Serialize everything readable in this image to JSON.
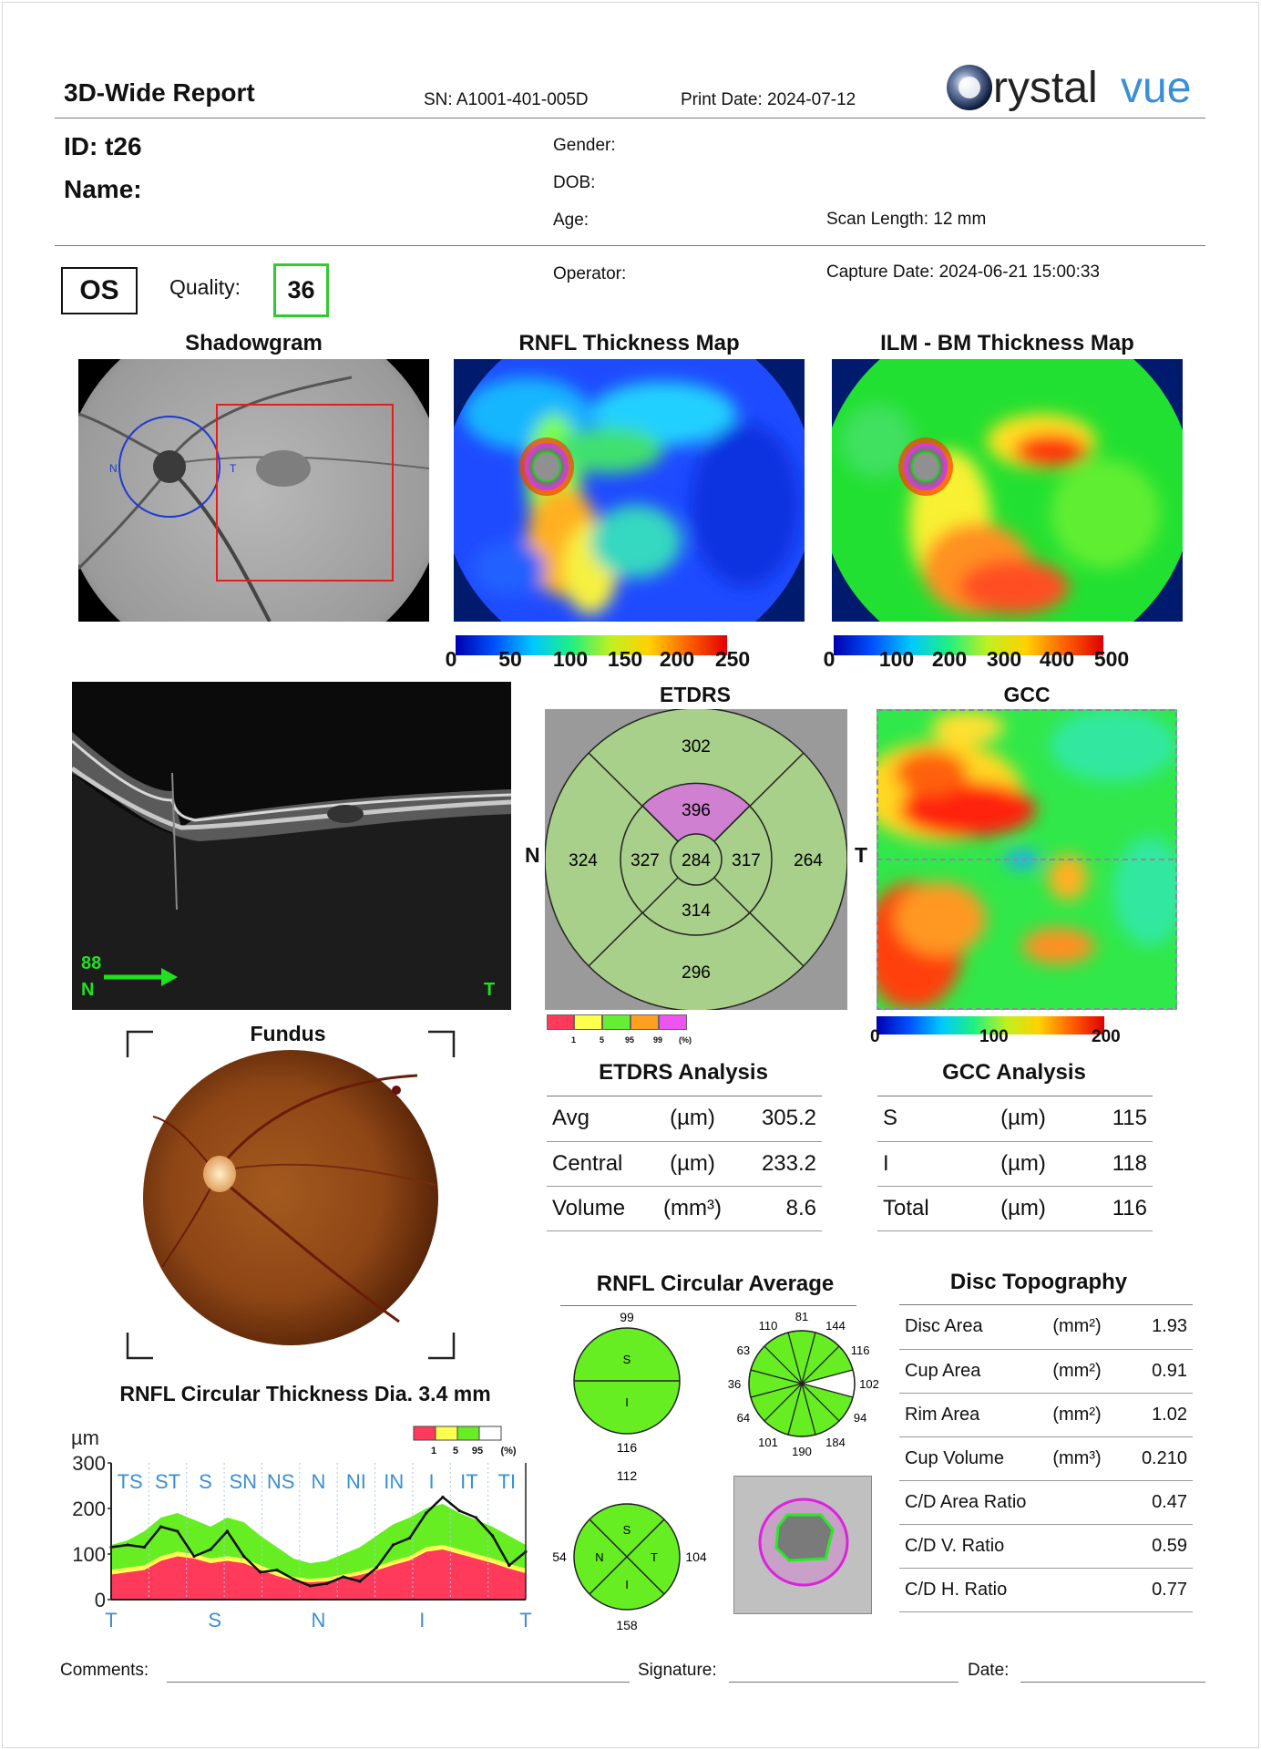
{
  "header": {
    "title": "3D-Wide Report",
    "sn": "SN: A1001-401-005D",
    "print_date": "Print Date: 2024-07-12",
    "logo_text": "Crystalvue"
  },
  "patient": {
    "id": "ID: t26",
    "name": "Name:",
    "gender": "Gender:",
    "dob": "DOB:",
    "age": "Age:",
    "scan_length": "Scan Length: 12 mm",
    "operator": "Operator:",
    "capture_date": "Capture Date:  2024-06-21 15:00:33",
    "eye": "OS",
    "quality_label": "Quality:",
    "quality_value": "36"
  },
  "colors": {
    "quality_green": "#2ecc2e",
    "accent_blue": "#3a8fd6",
    "red_box": "#e02020"
  },
  "shadowgram": {
    "title": "Shadowgram",
    "marker_n": "N",
    "marker_t": "T"
  },
  "rnfl_map": {
    "title": "RNFL Thickness Map",
    "scale": [
      "0",
      "50",
      "100",
      "150",
      "200",
      "250"
    ]
  },
  "ilm_map": {
    "title": "ILM - BM Thickness Map",
    "scale": [
      "0",
      "100",
      "200",
      "300",
      "400",
      "500"
    ]
  },
  "bscan": {
    "frame": "88",
    "left": "N",
    "right": "T"
  },
  "etdrs": {
    "title": "ETDRS",
    "left": "N",
    "right": "T",
    "values": {
      "outer_sup": "302",
      "inner_sup": "396",
      "outer_nasal": "324",
      "inner_nasal": "327",
      "center": "284",
      "inner_temp": "317",
      "outer_temp": "264",
      "inner_inf": "314",
      "outer_inf": "296"
    },
    "legend_labels": [
      "1",
      "5",
      "95",
      "99",
      "(%)"
    ]
  },
  "gcc": {
    "title": "GCC",
    "scale": [
      "0",
      "100",
      "200"
    ]
  },
  "fundus": {
    "title": "Fundus"
  },
  "etdrs_analysis": {
    "title": "ETDRS Analysis",
    "rows": [
      {
        "name": "Avg",
        "unit": "(µm)",
        "value": "305.2"
      },
      {
        "name": "Central",
        "unit": "(µm)",
        "value": "233.2"
      },
      {
        "name": "Volume",
        "unit": "(mm³)",
        "value": "8.6"
      }
    ]
  },
  "gcc_analysis": {
    "title": "GCC Analysis",
    "rows": [
      {
        "name": "S",
        "unit": "(µm)",
        "value": "115"
      },
      {
        "name": "I",
        "unit": "(µm)",
        "value": "118"
      },
      {
        "name": "Total",
        "unit": "(µm)",
        "value": "116"
      }
    ]
  },
  "rnfl_circular": {
    "title": "RNFL Circular Average",
    "hemi": {
      "top": "99",
      "bottom": "116",
      "s": "S",
      "i": "I"
    },
    "clock": [
      "81",
      "144",
      "116",
      "102",
      "94",
      "184",
      "190",
      "101",
      "64",
      "36",
      "63",
      "110"
    ],
    "quad": {
      "top": "112",
      "left": "54",
      "right": "104",
      "bottom": "158",
      "s": "S",
      "n": "N",
      "t": "T",
      "i": "I"
    }
  },
  "disc_topography": {
    "title": "Disc Topography",
    "rows": [
      {
        "name": "Disc Area",
        "unit": "(mm²)",
        "value": "1.93"
      },
      {
        "name": "Cup Area",
        "unit": "(mm²)",
        "value": "0.91"
      },
      {
        "name": "Rim Area",
        "unit": "(mm²)",
        "value": "1.02"
      },
      {
        "name": "Cup Volume",
        "unit": "(mm³)",
        "value": "0.210"
      },
      {
        "name": "C/D Area Ratio",
        "unit": "",
        "value": "0.47"
      },
      {
        "name": "C/D V. Ratio",
        "unit": "",
        "value": "0.59"
      },
      {
        "name": "C/D H. Ratio",
        "unit": "",
        "value": "0.77"
      }
    ]
  },
  "chart_data": {
    "type": "area",
    "title": "RNFL Circular Thickness Dia. 3.4 mm",
    "ylabel": "µm",
    "ylim": [
      0,
      300
    ],
    "yticks": [
      "300",
      "200",
      "100",
      "0"
    ],
    "sector_labels": [
      "TS",
      "ST",
      "S",
      "SN",
      "NS",
      "N",
      "NI",
      "IN",
      "I",
      "IT",
      "TI"
    ],
    "xlabels": [
      "T",
      "S",
      "N",
      "I",
      "T"
    ],
    "legend_labels": [
      "1",
      "5",
      "95",
      "(%)"
    ],
    "x": [
      0,
      4,
      8,
      12,
      16,
      20,
      24,
      28,
      32,
      36,
      40,
      44,
      48,
      52,
      56,
      60,
      64,
      68,
      72,
      76,
      80,
      84,
      88,
      92,
      96,
      100
    ],
    "series": [
      {
        "name": "RNFL",
        "values": [
          115,
          120,
          115,
          160,
          150,
          95,
          110,
          150,
          95,
          60,
          65,
          45,
          30,
          35,
          50,
          40,
          70,
          120,
          135,
          190,
          225,
          195,
          180,
          140,
          75,
          105
        ]
      }
    ],
    "band_95": [
      120,
      130,
      150,
      180,
      190,
      175,
      160,
      180,
      170,
      140,
      115,
      90,
      80,
      85,
      100,
      115,
      140,
      165,
      180,
      200,
      210,
      190,
      175,
      160,
      140,
      120
    ],
    "band_5": [
      65,
      70,
      75,
      95,
      105,
      100,
      90,
      95,
      90,
      75,
      60,
      50,
      45,
      48,
      55,
      62,
      72,
      85,
      95,
      115,
      120,
      110,
      100,
      90,
      78,
      68
    ],
    "band_1": [
      55,
      60,
      65,
      85,
      95,
      90,
      80,
      85,
      80,
      65,
      52,
      42,
      38,
      40,
      47,
      54,
      64,
      76,
      86,
      105,
      110,
      100,
      90,
      80,
      68,
      58
    ]
  },
  "footer": {
    "comments": "Comments:",
    "signature": "Signature:",
    "date": "Date:"
  }
}
